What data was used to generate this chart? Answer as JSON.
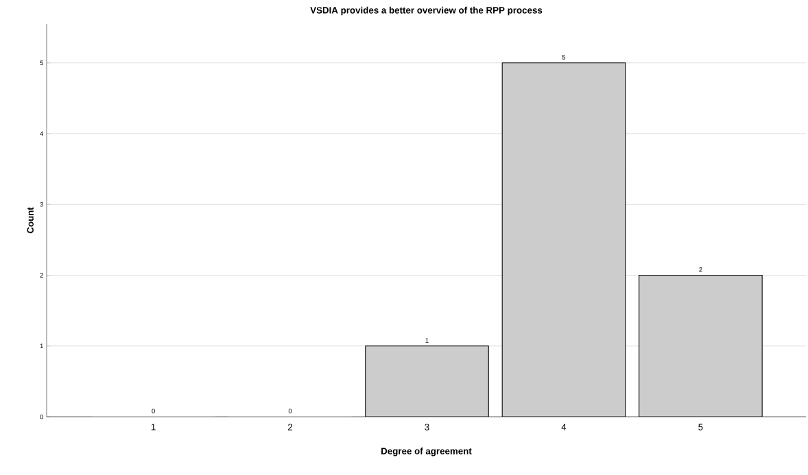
{
  "chart_data": {
    "type": "bar",
    "title": "VSDIA provides a better overview of the RPP process",
    "xlabel": "Degree of agreement",
    "ylabel": "Count",
    "categories": [
      "1",
      "2",
      "3",
      "4",
      "5"
    ],
    "values": [
      0,
      0,
      1,
      5,
      2
    ],
    "color": "#cccccc",
    "ylim": [
      0,
      5.55
    ],
    "yticks": [
      0,
      1,
      2,
      3,
      4,
      5
    ],
    "grid": "y",
    "data_labels": true
  }
}
